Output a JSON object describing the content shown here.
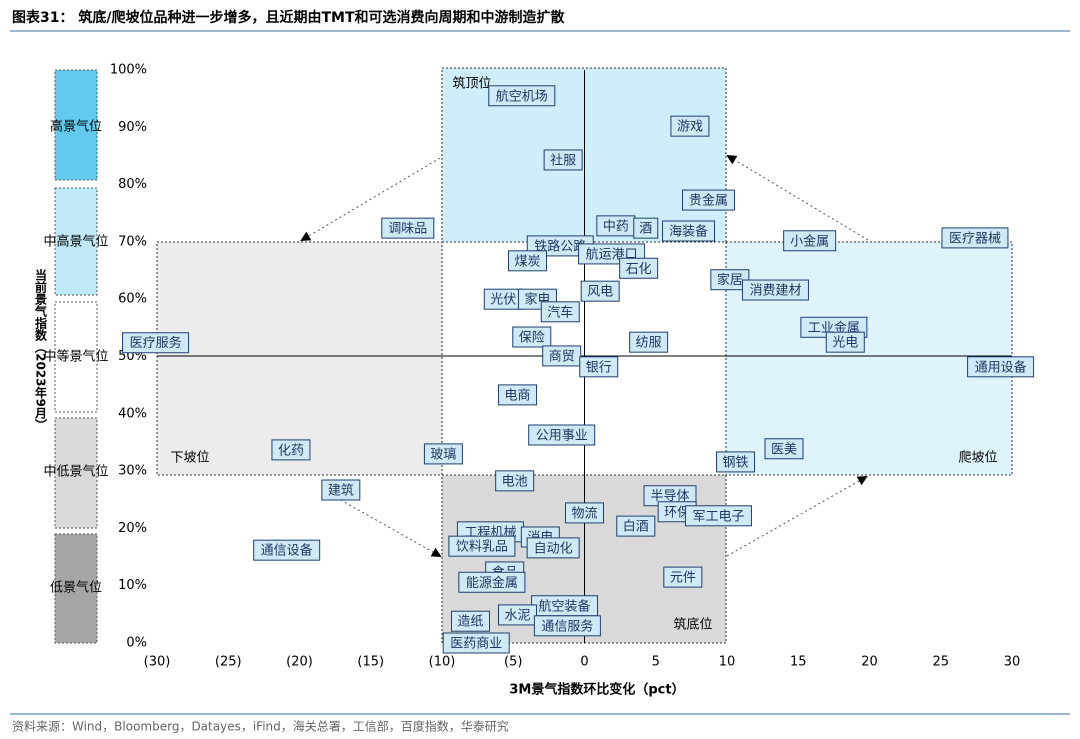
{
  "chart_data": {
    "type": "scatter",
    "title": "图表31：  筑底/爬坡位品种进一步增多，且近期由TMT和可选消费向周期和中游制造扩散",
    "xlabel": "3M景气指数环比变化（pct）",
    "ylabel": "当前景气指数（2023年9月）",
    "source": "资料来源：Wind，Bloomberg，Datayes，iFind，海关总署，工信部，百度指数，华泰研究",
    "zones": [
      "高景气位",
      "中高景气位",
      "中等景气位",
      "中低景气位",
      "低景气位"
    ],
    "phases": [
      "筑顶位",
      "下坡位",
      "爬坡位",
      "筑底位"
    ],
    "xlim": [
      -30,
      30
    ],
    "ylim": [
      0,
      100
    ],
    "xticks": [
      {
        "value": -30,
        "label": "(30)"
      },
      {
        "value": -25,
        "label": "(25)"
      },
      {
        "value": -20,
        "label": "(20)"
      },
      {
        "value": -15,
        "label": "(15)"
      },
      {
        "value": -10,
        "label": "(10)"
      },
      {
        "value": -5,
        "label": "(5)"
      },
      0,
      5,
      10,
      15,
      20,
      25,
      30
    ],
    "yticks": [
      {
        "value": 0,
        "label": "0%"
      },
      {
        "value": 10,
        "label": "10%"
      },
      {
        "value": 20,
        "label": "20%"
      },
      {
        "value": 30,
        "label": "30%"
      },
      {
        "value": 40,
        "label": "40%"
      },
      {
        "value": 50,
        "label": "50%"
      },
      {
        "value": 60,
        "label": "60%"
      },
      {
        "value": 70,
        "label": "70%"
      },
      {
        "value": 80,
        "label": "80%"
      },
      {
        "value": 90,
        "label": "90%"
      },
      {
        "value": 100,
        "label": "100%"
      }
    ],
    "color": "#cfe9f6",
    "labels": [
      "航空机场",
      "游戏",
      "社服",
      "贵金属",
      "调味品",
      "中药",
      "酒",
      "海装备",
      "小金属",
      "医疗器械",
      "铁路公路",
      "航运港口",
      "煤炭",
      "石化",
      "家居",
      "消费建材",
      "风电",
      "光伏",
      "家电",
      "汽车",
      "工业金属",
      "保险",
      "光电",
      "纺服",
      "医疗服务",
      "商贸",
      "银行",
      "通用设备",
      "电商",
      "公用事业",
      "化药",
      "玻璃",
      "医美",
      "钢铁",
      "电池",
      "建筑",
      "半导体",
      "物流",
      "环保",
      "军工电子",
      "白酒",
      "工程机械",
      "消电",
      "饮料乳品",
      "自动化",
      "通信设备",
      "元件",
      "食品",
      "能源金属",
      "航空装备",
      "水泥",
      "通信服务",
      "造纸",
      "医药商业"
    ],
    "x": [
      -4.4,
      7.4,
      -1.5,
      8.7,
      -12.4,
      2.2,
      4.3,
      7.3,
      15.8,
      27.4,
      -1.7,
      1.9,
      -4.0,
      3.8,
      10.2,
      13.4,
      1.1,
      -5.7,
      -3.3,
      -1.7,
      17.5,
      -3.7,
      18.3,
      4.5,
      -30.1,
      -1.6,
      1.0,
      29.2,
      -4.7,
      -1.6,
      -20.6,
      -9.9,
      14.0,
      10.6,
      -4.9,
      -17.1,
      6.0,
      0.0,
      6.5,
      9.4,
      3.6,
      -6.6,
      -3.1,
      -7.2,
      -2.2,
      -20.9,
      6.9,
      -5.6,
      -6.5,
      -1.4,
      -4.7,
      -1.2,
      -8.0,
      -7.6
    ],
    "values": [
      95.5,
      90.2,
      84.3,
      77.3,
      72.4,
      72.8,
      72.4,
      71.9,
      70.2,
      70.7,
      69.3,
      67.9,
      66.7,
      65.4,
      63.4,
      61.6,
      61.4,
      60.0,
      60.0,
      57.8,
      55.1,
      53.4,
      52.5,
      52.5,
      52.4,
      50.1,
      48.2,
      48.2,
      43.3,
      36.3,
      33.7,
      33.0,
      33.9,
      31.6,
      28.3,
      26.7,
      25.7,
      22.7,
      22.9,
      22.2,
      20.4,
      19.4,
      18.5,
      16.9,
      16.6,
      16.2,
      11.5,
      12.4,
      10.6,
      6.5,
      4.9,
      3.0,
      3.8,
      0.0
    ]
  }
}
